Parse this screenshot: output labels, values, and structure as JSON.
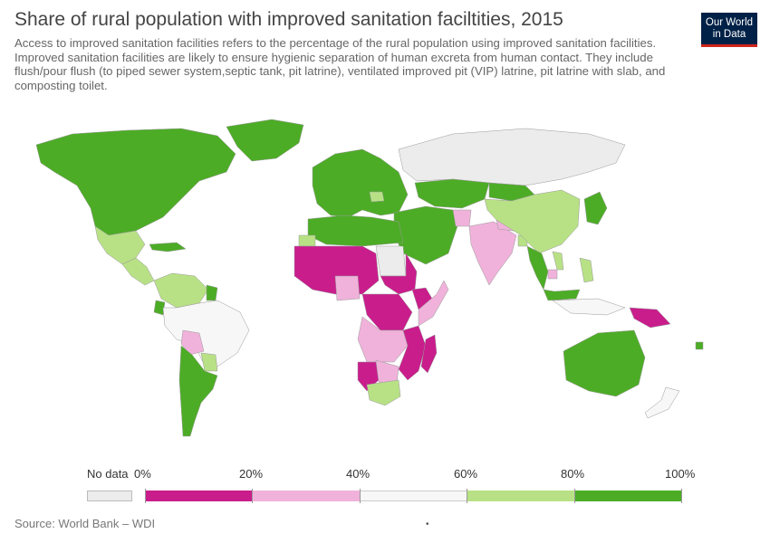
{
  "header": {
    "title": "Share of rural population with improved sanitation faciltities, 2015",
    "subtitle": "Access to improved sanitation facilities refers to the percentage of the rural population using improved sanitation facilities. Improved sanitation facilities are likely to ensure hygienic separation of human excreta from human contact. They include flush/pour flush (to piped sewer system,septic tank, pit latrine), ventilated improved pit (VIP) latrine, pit latrine with slab, and composting toilet."
  },
  "logo": {
    "line1": "Our World",
    "line2": "in Data"
  },
  "legend": {
    "no_data_label": "No data",
    "ticks": [
      "0%",
      "20%",
      "40%",
      "60%",
      "80%",
      "100%"
    ],
    "colors": {
      "no_data": "#ececec",
      "0-20": "#c91d8c",
      "20-40": "#f0b2da",
      "40-60": "#f7f7f7",
      "60-80": "#b8e186",
      "80-100": "#4dac26"
    }
  },
  "footer": {
    "source": "Source: World Bank – WDI",
    "dot": "•"
  },
  "regions": [
    {
      "name": "North America",
      "band": "80-100"
    },
    {
      "name": "Mexico",
      "band": "60-80"
    },
    {
      "name": "Central America",
      "band": "60-80"
    },
    {
      "name": "Caribbean",
      "band": "80-100"
    },
    {
      "name": "Colombia & Venezuela",
      "band": "60-80"
    },
    {
      "name": "Guyana",
      "band": "80-100"
    },
    {
      "name": "Ecuador",
      "band": "80-100"
    },
    {
      "name": "Brazil & Peru",
      "band": "40-60"
    },
    {
      "name": "Bolivia",
      "band": "20-40"
    },
    {
      "name": "Paraguay",
      "band": "60-80"
    },
    {
      "name": "Argentina & Chile",
      "band": "80-100"
    },
    {
      "name": "Greenland",
      "band": "80-100"
    },
    {
      "name": "Europe",
      "band": "80-100"
    },
    {
      "name": "Romania",
      "band": "60-80"
    },
    {
      "name": "Russia",
      "band": "no_data"
    },
    {
      "name": "Kazakhstan",
      "band": "80-100"
    },
    {
      "name": "Middle East",
      "band": "80-100"
    },
    {
      "name": "Afghanistan",
      "band": "20-40"
    },
    {
      "name": "India",
      "band": "20-40"
    },
    {
      "name": "Nepal",
      "band": "20-40"
    },
    {
      "name": "Bangladesh",
      "band": "60-80"
    },
    {
      "name": "China",
      "band": "60-80"
    },
    {
      "name": "Mongolia",
      "band": "80-100"
    },
    {
      "name": "Japan & Korea",
      "band": "80-100"
    },
    {
      "name": "Myanmar & Thailand",
      "band": "80-100"
    },
    {
      "name": "Cambodia",
      "band": "20-40"
    },
    {
      "name": "Vietnam",
      "band": "60-80"
    },
    {
      "name": "Philippines",
      "band": "60-80"
    },
    {
      "name": "Indonesia",
      "band": "40-60"
    },
    {
      "name": "Malaysia",
      "band": "80-100"
    },
    {
      "name": "Papua New Guinea",
      "band": "0-20"
    },
    {
      "name": "Australia",
      "band": "80-100"
    },
    {
      "name": "New Zealand",
      "band": "40-60"
    },
    {
      "name": "North Africa",
      "band": "80-100"
    },
    {
      "name": "Western Sahara",
      "band": "60-80"
    },
    {
      "name": "Libya",
      "band": "no_data"
    },
    {
      "name": "Sahel & West Africa",
      "band": "0-20"
    },
    {
      "name": "Ghana & Nigeria area",
      "band": "20-40"
    },
    {
      "name": "Sudan",
      "band": "0-20"
    },
    {
      "name": "Ethiopia",
      "band": "0-20"
    },
    {
      "name": "Kenya & Somalia",
      "band": "20-40"
    },
    {
      "name": "Central Africa",
      "band": "0-20"
    },
    {
      "name": "DR Congo & Angola",
      "band": "20-40"
    },
    {
      "name": "Tanzania & Mozambique",
      "band": "0-20"
    },
    {
      "name": "Namibia",
      "band": "0-20"
    },
    {
      "name": "Botswana & Zimbabwe",
      "band": "20-40"
    },
    {
      "name": "South Africa",
      "band": "60-80"
    },
    {
      "name": "Madagascar",
      "band": "0-20"
    },
    {
      "name": "Antarctica-free Pacific islands",
      "band": "80-100"
    }
  ]
}
